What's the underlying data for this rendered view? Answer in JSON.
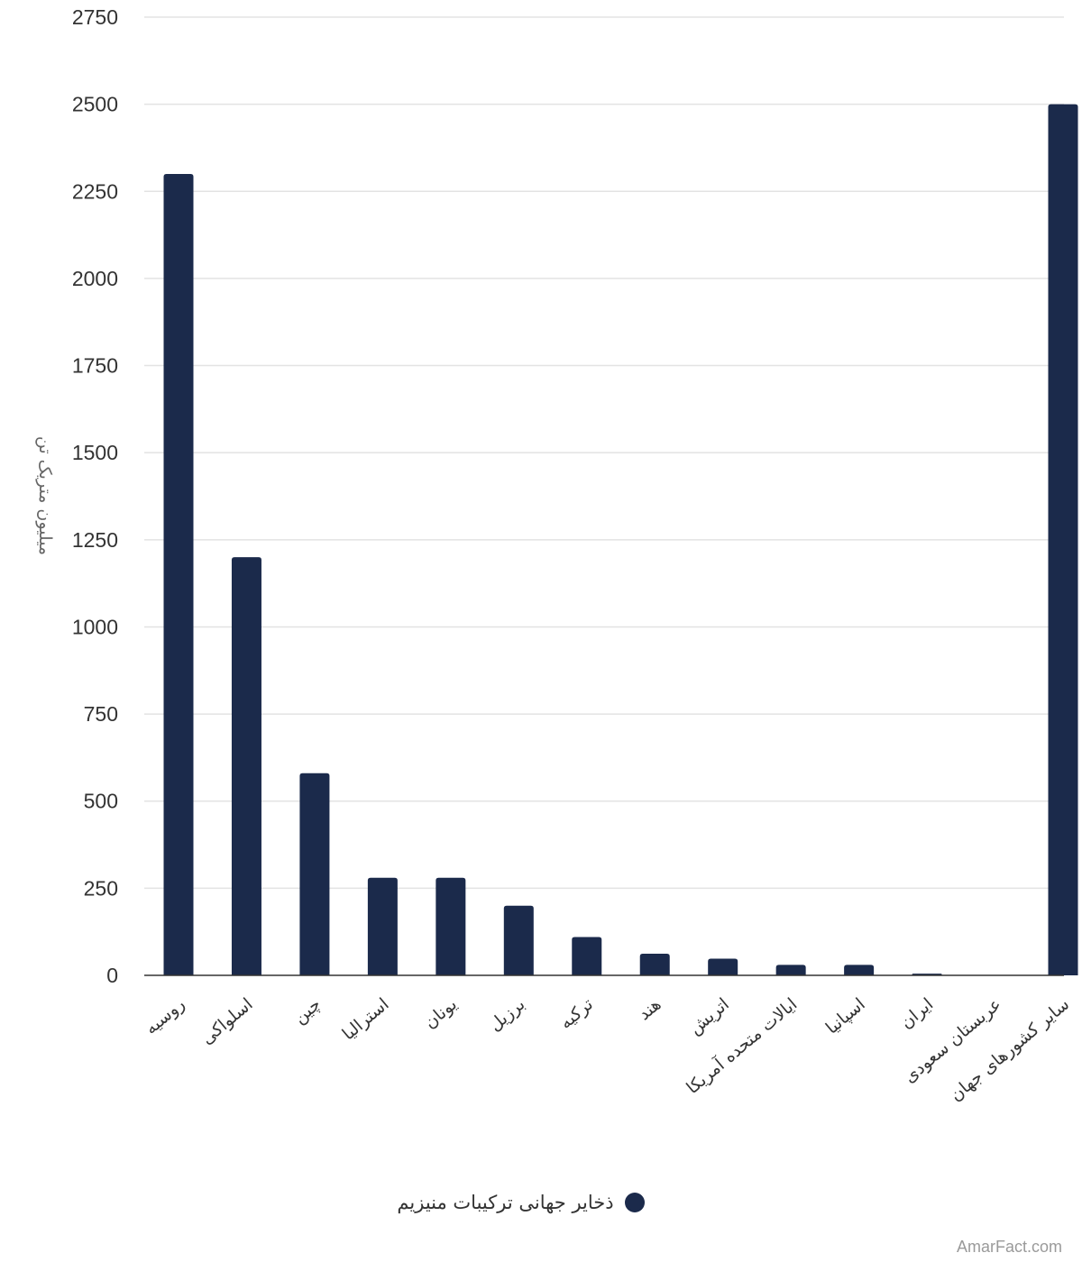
{
  "chart_data": {
    "type": "bar",
    "ylabel": "میلیون متریک تن",
    "ylim": [
      0,
      2750
    ],
    "yticks": [
      0,
      250,
      500,
      750,
      1000,
      1250,
      1500,
      1750,
      2000,
      2250,
      2500,
      2750
    ],
    "grid": true,
    "legend_position": "bottom",
    "categories": [
      "روسیه",
      "اسلواکی",
      "چین",
      "استرالیا",
      "یونان",
      "برزیل",
      "ترکیه",
      "هند",
      "اتریش",
      "ایالات متحده آمریکا",
      "اسپانیا",
      "ایران",
      "عربستان سعودی",
      "سایر کشورهای جهان"
    ],
    "series": [
      {
        "name": "ذخایر جهانی ترکیبات منیزیم",
        "color": "#1b2a4b",
        "values": [
          2300,
          1200,
          580,
          280,
          280,
          200,
          110,
          62,
          48,
          30,
          30,
          5,
          0,
          2500
        ]
      }
    ]
  },
  "watermark": "AmarFact.com"
}
